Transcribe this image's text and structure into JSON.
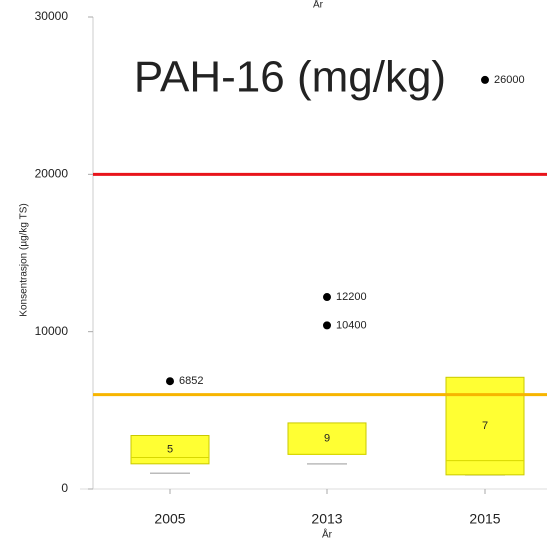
{
  "chart_data": {
    "type": "box",
    "title": "PAH-16 (mg/kg)",
    "x_label_top": "År",
    "x_label": "År",
    "y_label": "Konsentrasjon (µg/kg TS)",
    "categories": [
      "2005",
      "2013",
      "2015"
    ],
    "whisker_low": [
      1000,
      1600,
      900
    ],
    "q1": [
      1600,
      2200,
      900
    ],
    "median": [
      2000,
      2200,
      1800
    ],
    "q3": [
      3400,
      4200,
      7100
    ],
    "n": [
      5,
      9,
      7
    ],
    "outliers": [
      [
        6852
      ],
      [
        12200,
        10400
      ],
      [
        26000
      ]
    ],
    "box_color": "#ffff33",
    "reference_lines": [
      {
        "value": 20000,
        "color": "#e8141b"
      },
      {
        "value": 6000,
        "color": "#f7b500"
      }
    ],
    "ylim": [
      0,
      30000
    ],
    "yticks": [
      0,
      10000,
      20000,
      30000
    ]
  }
}
